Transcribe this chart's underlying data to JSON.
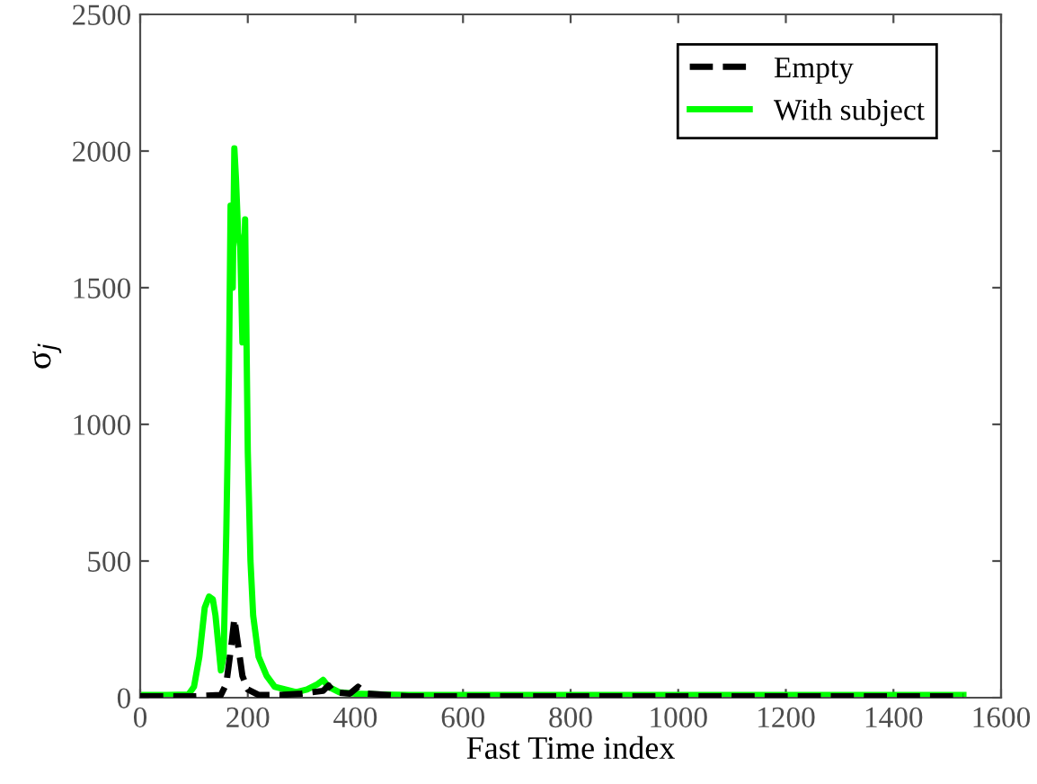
{
  "chart_data": {
    "type": "line",
    "xlabel": "Fast Time index",
    "ylabel": "σ$_{j}$",
    "xlim": [
      0,
      1600
    ],
    "xticks": [
      0,
      200,
      400,
      600,
      800,
      1000,
      1200,
      1400,
      1600
    ],
    "ylim": [
      0,
      2500
    ],
    "yticks": [
      0,
      500,
      1000,
      1500,
      2000,
      2500
    ],
    "grid": false,
    "legend": "top right",
    "marker": "none",
    "series": [
      {
        "name": "Empty",
        "color": "#000000",
        "line_style": "dashed",
        "x": [
          0,
          100,
          150,
          160,
          170,
          175,
          180,
          185,
          190,
          200,
          220,
          260,
          300,
          340,
          350,
          360,
          390,
          405,
          420,
          500,
          1530
        ],
        "values": [
          5,
          5,
          10,
          50,
          200,
          290,
          220,
          150,
          80,
          30,
          10,
          10,
          15,
          25,
          45,
          20,
          15,
          40,
          15,
          5,
          5
        ]
      },
      {
        "name": "With subject",
        "color": "#00ff00",
        "line_style": "solid",
        "x": [
          0,
          50,
          90,
          100,
          110,
          120,
          128,
          135,
          140,
          145,
          150,
          155,
          160,
          165,
          168,
          172,
          175,
          178,
          182,
          186,
          190,
          195,
          200,
          205,
          210,
          220,
          235,
          250,
          270,
          290,
          310,
          330,
          340,
          350,
          370,
          400,
          450,
          500,
          700,
          1000,
          1200,
          1530
        ],
        "values": [
          10,
          10,
          12,
          40,
          150,
          330,
          370,
          360,
          300,
          200,
          100,
          150,
          600,
          1200,
          1800,
          1500,
          2010,
          1900,
          1700,
          1650,
          1300,
          1750,
          900,
          500,
          300,
          150,
          80,
          40,
          30,
          20,
          30,
          50,
          65,
          40,
          20,
          15,
          12,
          10,
          10,
          10,
          10,
          10
        ]
      }
    ]
  }
}
